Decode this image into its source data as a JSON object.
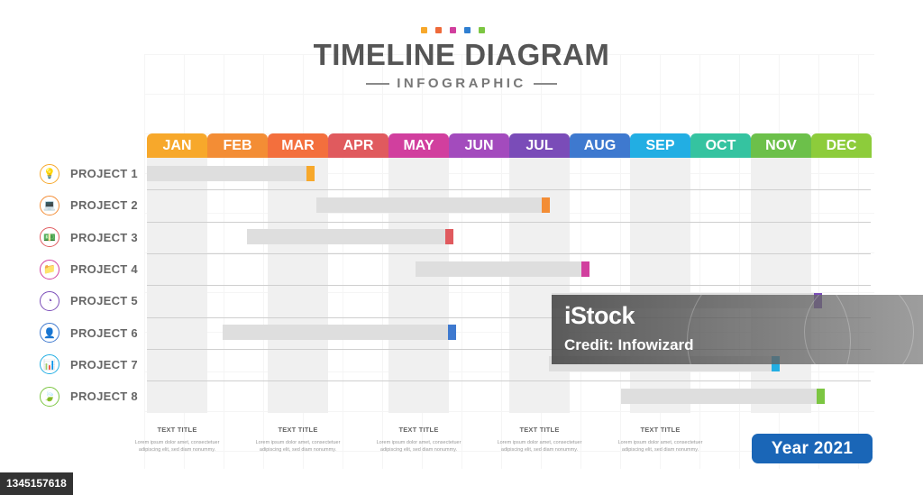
{
  "header": {
    "title": "TIMELINE DIAGRAM",
    "subtitle": "INFOGRAPHIC",
    "dot_colors": [
      "#f7a82b",
      "#ee6a3a",
      "#d13f9e",
      "#2f7fd1",
      "#7cc642"
    ]
  },
  "months": [
    {
      "label": "JAN",
      "color": "#f7a82b"
    },
    {
      "label": "FEB",
      "color": "#f38d35"
    },
    {
      "label": "MAR",
      "color": "#f36f3d"
    },
    {
      "label": "APR",
      "color": "#e05a5e"
    },
    {
      "label": "MAY",
      "color": "#d13f9e"
    },
    {
      "label": "JUN",
      "color": "#a34bbd"
    },
    {
      "label": "JUL",
      "color": "#7a4cb8"
    },
    {
      "label": "AUG",
      "color": "#3e79cf"
    },
    {
      "label": "SEP",
      "color": "#22aee3"
    },
    {
      "label": "OCT",
      "color": "#35c3a0"
    },
    {
      "label": "NOV",
      "color": "#6cc04a"
    },
    {
      "label": "DEC",
      "color": "#8dcc3b"
    }
  ],
  "projects": [
    {
      "label": "PROJECT 1",
      "icon": "lightbulb-icon",
      "glyph": "💡",
      "color": "#f7a82b",
      "start": 0,
      "end": 2.7
    },
    {
      "label": "PROJECT 2",
      "icon": "laptop-icon",
      "glyph": "💻",
      "color": "#f38d35",
      "start": 2.8,
      "end": 6.6
    },
    {
      "label": "PROJECT 3",
      "icon": "money-icon",
      "glyph": "💵",
      "color": "#e05a5e",
      "start": 1.65,
      "end": 5.0
    },
    {
      "label": "PROJECT 4",
      "icon": "folder-icon",
      "glyph": "📁",
      "color": "#d13f9e",
      "start": 4.45,
      "end": 7.25
    },
    {
      "label": "PROJECT 5",
      "icon": "pie-chart-icon",
      "glyph": "◔",
      "color": "#7a4cb8",
      "start": 6.7,
      "end": 11.1
    },
    {
      "label": "PROJECT 6",
      "icon": "user-icon",
      "glyph": "👤",
      "color": "#3e79cf",
      "start": 1.25,
      "end": 5.05
    },
    {
      "label": "PROJECT 7",
      "icon": "bar-chart-icon",
      "glyph": "📊",
      "color": "#22aee3",
      "start": 6.65,
      "end": 10.4
    },
    {
      "label": "PROJECT 8",
      "icon": "leaf-icon",
      "glyph": "🍃",
      "color": "#7cc642",
      "start": 7.85,
      "end": 11.15
    }
  ],
  "notes": [
    {
      "title": "TEXT TITLE",
      "body": "Lorem ipsum dolor amet, consectetuer adipiscing elit, sed diam nonummy."
    },
    {
      "title": "TEXT TITLE",
      "body": "Lorem ipsum dolor amet, consectetuer adipiscing elit, sed diam nonummy."
    },
    {
      "title": "TEXT TITLE",
      "body": "Lorem ipsum dolor amet, consectetuer adipiscing elit, sed diam nonummy."
    },
    {
      "title": "TEXT TITLE",
      "body": "Lorem ipsum dolor amet, consectetuer adipiscing elit, sed diam nonummy."
    },
    {
      "title": "TEXT TITLE",
      "body": "Lorem ipsum dolor amet, consectetuer adipiscing elit, sed diam nonummy."
    }
  ],
  "year_label": "Year 2021",
  "watermark": {
    "brand": "iStock",
    "credit": "Credit: Infowizard"
  },
  "stock_id": "1345157618"
}
